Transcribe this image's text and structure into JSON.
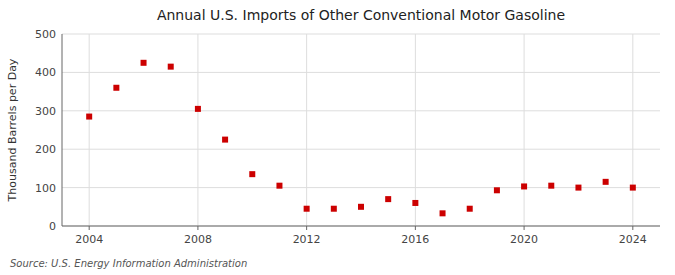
{
  "chart_data": {
    "type": "scatter",
    "title": "Annual U.S. Imports of Other Conventional Motor Gasoline",
    "ylabel": "Thousand Barrels per Day",
    "source": "Source: U.S. Energy Information Administration",
    "x": [
      2004,
      2005,
      2006,
      2007,
      2008,
      2009,
      2010,
      2011,
      2012,
      2013,
      2014,
      2015,
      2016,
      2017,
      2018,
      2019,
      2020,
      2021,
      2022,
      2023,
      2024
    ],
    "values": [
      285,
      360,
      425,
      415,
      305,
      225,
      135,
      105,
      45,
      45,
      50,
      70,
      60,
      33,
      45,
      93,
      103,
      105,
      100,
      115,
      100
    ],
    "color": "#cc0000",
    "marker": "square",
    "xlim": [
      2003.0,
      2025.0
    ],
    "ylim": [
      0,
      500
    ],
    "xticks": [
      2004,
      2008,
      2012,
      2016,
      2020,
      2024
    ],
    "yticks": [
      0,
      100,
      200,
      300,
      400,
      500
    ],
    "grid": true
  }
}
